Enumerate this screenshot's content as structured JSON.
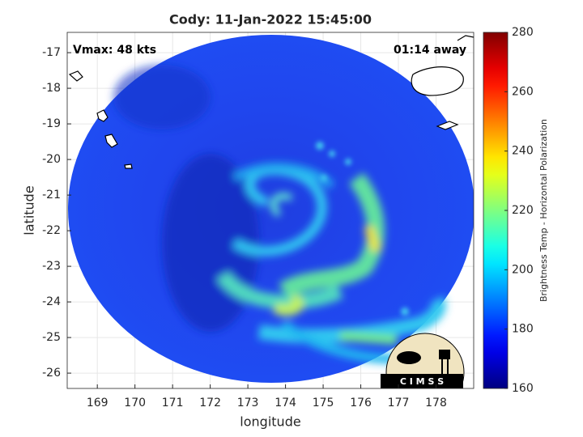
{
  "chart_data": {
    "type": "image",
    "title": "Cody: 11-Jan-2022 15:45:00",
    "annotations": [
      "Vmax: 48 kts",
      "01:14 away"
    ],
    "xlabel": "longitude",
    "ylabel": "latitude",
    "xlim": [
      168.2,
      179.0
    ],
    "xticks": [
      169,
      170,
      171,
      172,
      173,
      174,
      175,
      176,
      177,
      178
    ],
    "ylim": [
      -26.43,
      -16.43
    ],
    "yticks": [
      -17,
      -18,
      -19,
      -20,
      -21,
      -22,
      -23,
      -24,
      -25,
      -26
    ],
    "grid": true,
    "colorbar": {
      "label": "Brightness Temp - Horizontal Polarization",
      "colormap": "jet",
      "lim": [
        160,
        280
      ],
      "ticks": [
        160,
        180,
        200,
        220,
        240,
        260,
        280
      ]
    },
    "logo": "C I M S S"
  }
}
